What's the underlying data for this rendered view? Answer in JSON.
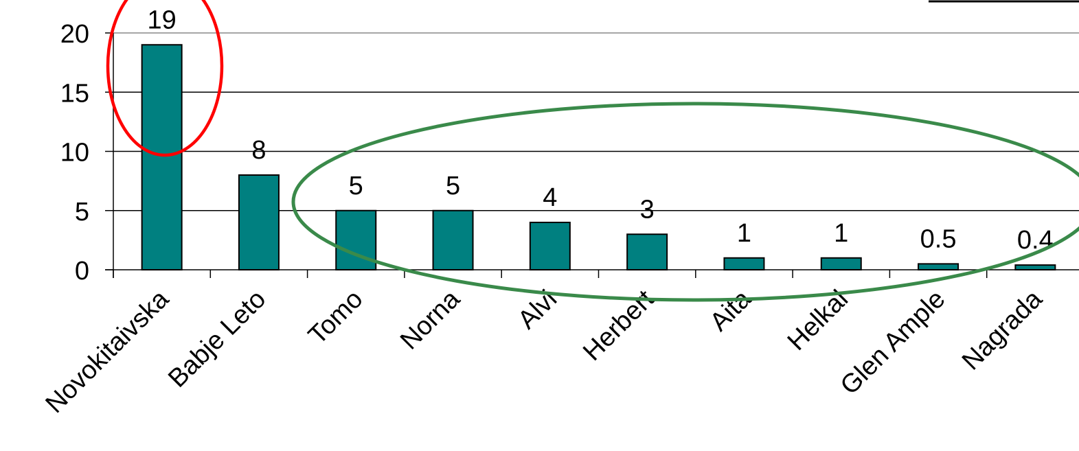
{
  "chart_data": {
    "type": "bar",
    "categories": [
      "Novokitaivska",
      "Babje Leto",
      "Tomo",
      "Norna",
      "Alvi",
      "Herbert",
      "Aita",
      "Helkal",
      "Glen Ample",
      "Nagrada"
    ],
    "values": [
      19,
      8,
      5,
      5,
      4,
      3,
      1,
      1,
      0.5,
      0.4
    ],
    "data_labels": [
      "19",
      "8",
      "5",
      "5",
      "4",
      "3",
      "1",
      "1",
      "0.5",
      "0.4"
    ],
    "y_ticks": [
      "0",
      "5",
      "10",
      "15",
      "20"
    ],
    "y_tick_values": [
      0,
      5,
      10,
      15,
      20
    ],
    "ylim": [
      0,
      20
    ],
    "grid": true,
    "title": "",
    "xlabel": "",
    "ylabel": ""
  },
  "colors": {
    "bar": "#008080",
    "bar_outline": "#000000",
    "gridline": "#000000",
    "highlight_red": "#ff0000",
    "highlight_green": "#3a8a4a"
  }
}
